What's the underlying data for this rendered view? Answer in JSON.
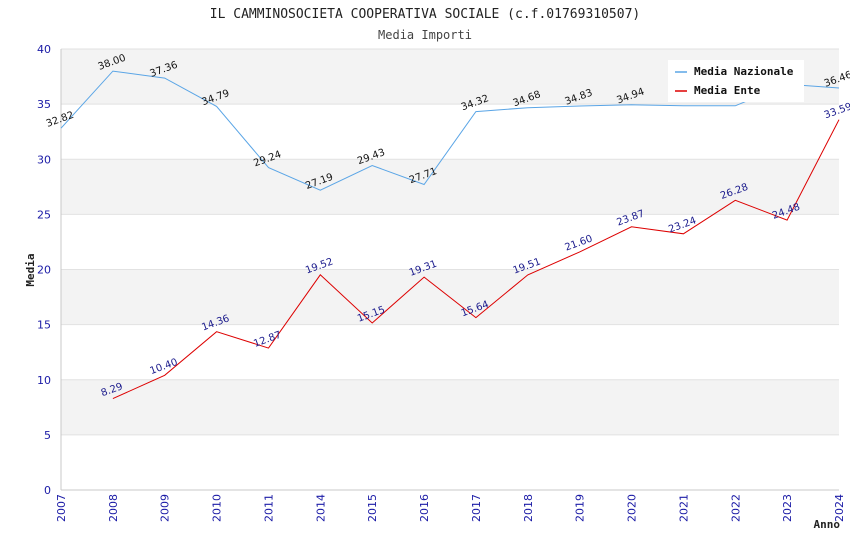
{
  "chart_data": {
    "type": "line",
    "title": "IL CAMMINOSOCIETA COOPERATIVA SOCIALE (c.f.01769310507)",
    "subtitle": "Media Importi",
    "xlabel": "Anno",
    "ylabel": "Media",
    "ylim": [
      0,
      40
    ],
    "yticks": [
      "0",
      "5",
      "10",
      "15",
      "20",
      "25",
      "30",
      "35",
      "40"
    ],
    "categories": [
      "2007",
      "2008",
      "2009",
      "2010",
      "2011",
      "2014",
      "2015",
      "2016",
      "2017",
      "2018",
      "2019",
      "2020",
      "2021",
      "2022",
      "2023",
      "2024"
    ],
    "grid": true,
    "legend_position": "top-right",
    "series": [
      {
        "name": "Media Nazionale",
        "color": "#5aa5e6",
        "values": [
          32.82,
          38.0,
          37.36,
          34.79,
          29.24,
          27.19,
          29.43,
          27.71,
          34.32,
          34.68,
          34.83,
          34.94,
          34.85,
          34.85,
          36.8,
          36.46
        ],
        "labels": [
          "32.82",
          "38.00",
          "37.36",
          "34.79",
          "29.24",
          "27.19",
          "29.43",
          "27.71",
          "34.32",
          "34.68",
          "34.83",
          "34.94",
          "",
          "",
          "",
          "36.46"
        ]
      },
      {
        "name": "Media Ente",
        "color": "#dd0000",
        "values": [
          null,
          8.29,
          10.4,
          14.36,
          12.87,
          19.52,
          15.15,
          19.31,
          15.64,
          19.51,
          21.6,
          23.87,
          23.24,
          26.28,
          24.48,
          33.59
        ],
        "labels": [
          "",
          "8.29",
          "10.40",
          "14.36",
          "12.87",
          "19.52",
          "15.15",
          "19.31",
          "15.64",
          "19.51",
          "21.60",
          "23.87",
          "23.24",
          "26.28",
          "24.48",
          "33.59"
        ]
      }
    ]
  }
}
